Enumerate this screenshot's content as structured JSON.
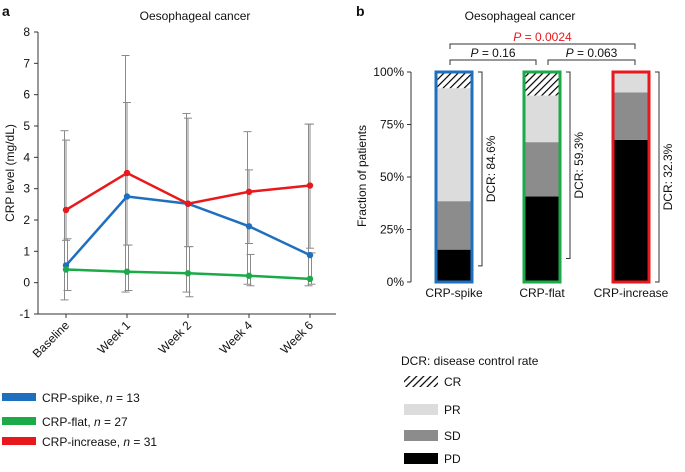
{
  "chart_data": [
    {
      "panel": "a",
      "type": "line",
      "title": "Oesophageal cancer",
      "ylabel": "CRP level (mg/dL)",
      "xlabel": "",
      "ylim": [
        -1,
        8
      ],
      "yticks": [
        -1,
        0,
        1,
        2,
        3,
        4,
        5,
        6,
        7,
        8
      ],
      "categories": [
        "Baseline",
        "Week 1",
        "Week 2",
        "Week 4",
        "Week 6"
      ],
      "series": [
        {
          "name": "CRP-spike",
          "n": 13,
          "color": "#1f6fbf",
          "values": [
            0.55,
            2.75,
            2.52,
            1.8,
            0.88
          ],
          "err_low": [
            -0.55,
            -0.3,
            -0.3,
            -0.05,
            -0.1
          ],
          "err_high": [
            4.85,
            7.25,
            5.4,
            4.82,
            5.06
          ]
        },
        {
          "name": "CRP-flat",
          "n": 27,
          "color": "#1aaa48",
          "values": [
            0.42,
            0.35,
            0.3,
            0.22,
            0.12
          ],
          "err_low": [
            -0.25,
            -0.25,
            -0.45,
            -0.1,
            -0.05
          ],
          "err_high": [
            1.4,
            1.2,
            1.15,
            0.9,
            0.95
          ]
        },
        {
          "name": "CRP-increase",
          "n": 31,
          "color": "#e8181c",
          "values": [
            2.32,
            3.5,
            2.52,
            2.9,
            3.1
          ],
          "err_low": [
            1.35,
            1.2,
            1.15,
            1.25,
            1.1
          ],
          "err_high": [
            4.55,
            5.75,
            5.25,
            3.6,
            5.06
          ]
        }
      ]
    },
    {
      "panel": "b",
      "type": "bar",
      "stacked": true,
      "title": "Oesophageal cancer",
      "ylabel": "Fraction of patients",
      "ylim": [
        0,
        100
      ],
      "yticks": [
        "0%",
        "25%",
        "50%",
        "75%",
        "100%"
      ],
      "categories": [
        "CRP-spike",
        "CRP-flat",
        "CRP-increase"
      ],
      "bar_border_colors": [
        "#1f6fbf",
        "#1aaa48",
        "#e8181c"
      ],
      "series": [
        {
          "name": "PD",
          "color": "#000000",
          "values": [
            15.4,
            40.7,
            67.7
          ]
        },
        {
          "name": "SD",
          "color": "#8c8c8c",
          "values": [
            23.1,
            25.9,
            22.6
          ]
        },
        {
          "name": "PR",
          "color": "#dcdcdc",
          "values": [
            53.8,
            22.2,
            9.7
          ]
        },
        {
          "name": "CR",
          "color": "hatched",
          "values": [
            7.7,
            11.1,
            0
          ]
        }
      ],
      "dcr_labels": [
        "DCR: 84.6%",
        "DCR: 59.3%",
        "DCR: 32.3%"
      ],
      "comparisons": [
        {
          "groups": [
            "CRP-spike",
            "CRP-flat"
          ],
          "p_prefix": "P",
          "p_value": " = 0.16",
          "color": "#111111"
        },
        {
          "groups": [
            "CRP-flat",
            "CRP-increase"
          ],
          "p_prefix": "P",
          "p_value": " = 0.063",
          "color": "#111111"
        },
        {
          "groups": [
            "CRP-spike",
            "CRP-increase"
          ],
          "p_prefix": "P",
          "p_value": " = 0.0024",
          "color": "#e8181c"
        }
      ]
    }
  ],
  "panel_labels": [
    "a",
    "b"
  ],
  "legend_a": [
    {
      "label": "CRP-spike",
      "n_text": " = 13"
    },
    {
      "label": "CRP-flat",
      "n_text": " = 27"
    },
    {
      "label": "CRP-increase",
      "n_text": " = 31"
    }
  ],
  "legend_b": {
    "title": "DCR: disease control rate",
    "items": [
      "CR",
      "PR",
      "SD",
      "PD"
    ]
  }
}
